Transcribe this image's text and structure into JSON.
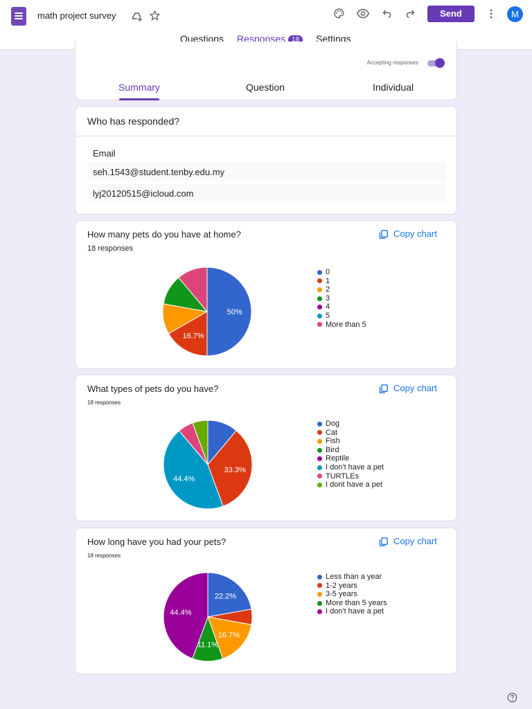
{
  "header": {
    "doc_title": "math project survey",
    "send_label": "Send",
    "avatar_letter": "M"
  },
  "tabs": {
    "questions": "Questions",
    "responses": "Responses",
    "response_count": "18",
    "settings": "Settings"
  },
  "summary_card": {
    "accepting_label": "Accepting responses",
    "accepting_on": true,
    "subtabs": [
      "Summary",
      "Question",
      "Individual"
    ]
  },
  "responders": {
    "heading": "Who has responded?",
    "email_label": "Email",
    "emails": [
      "seh.1543@student.tenby.edu.my",
      "lyj20120515@icloud.com"
    ]
  },
  "copy_label": "Copy chart",
  "questions": [
    {
      "title": "How many pets do you have at home?",
      "responses": "18 responses",
      "chart_data": {
        "type": "pie",
        "categories": [
          "0",
          "1",
          "2",
          "3",
          "4",
          "5",
          "More than 5"
        ],
        "values": [
          50,
          16.7,
          11.1,
          11.1,
          0,
          0,
          11.1
        ],
        "colors": [
          "#3366cc",
          "#dc3912",
          "#ff9900",
          "#109618",
          "#990099",
          "#0099c6",
          "#dd4477"
        ],
        "labels": [
          "50%",
          "16.7%",
          "",
          "",
          "",
          "",
          ""
        ]
      }
    },
    {
      "title": "What types of pets do you have?",
      "responses": "18 responses",
      "chart_data": {
        "type": "pie",
        "categories": [
          "Dog",
          "Cat",
          "Fish",
          "Bird",
          "Reptile",
          "I don't have a pet",
          "TURTLEs",
          "I dont have a pet"
        ],
        "values": [
          11.1,
          33.3,
          0,
          0,
          0,
          44.4,
          5.6,
          5.6
        ],
        "colors": [
          "#3366cc",
          "#dc3912",
          "#ff9900",
          "#109618",
          "#990099",
          "#0099c6",
          "#dd4477",
          "#66aa00"
        ],
        "labels": [
          "",
          "33.3%",
          "",
          "",
          "",
          "44.4%",
          "",
          ""
        ]
      }
    },
    {
      "title": "How long have you had your pets?",
      "responses": "18 responses",
      "chart_data": {
        "type": "pie",
        "categories": [
          "Less than a year",
          "1-2 years",
          "3-5 years",
          "More than 5 years",
          "I don't have a pet"
        ],
        "values": [
          22.2,
          5.6,
          16.7,
          11.1,
          44.4
        ],
        "colors": [
          "#3366cc",
          "#dc3912",
          "#ff9900",
          "#109618",
          "#990099"
        ],
        "labels": [
          "22.2%",
          "",
          "16.7%",
          "11.1%",
          "44.4%"
        ]
      }
    }
  ]
}
